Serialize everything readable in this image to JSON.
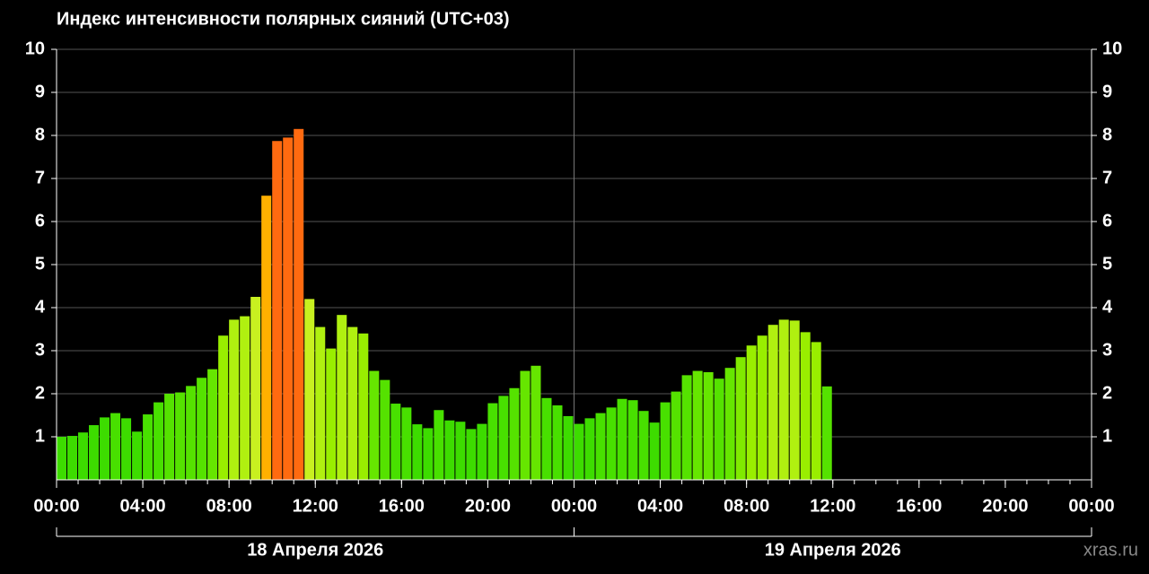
{
  "chart_data": {
    "type": "bar",
    "title": "Индекс интенсивности полярных сияний (UTC+03)",
    "x": [
      0,
      0.5,
      1,
      1.5,
      2,
      2.5,
      3,
      3.5,
      4,
      4.5,
      5,
      5.5,
      6,
      6.5,
      7,
      7.5,
      8,
      8.5,
      9,
      9.5,
      10,
      10.5,
      11,
      11.5,
      12,
      12.5,
      13,
      13.5,
      14,
      14.5,
      15,
      15.5,
      16,
      16.5,
      17,
      17.5,
      18,
      18.5,
      19,
      19.5,
      20,
      20.5,
      21,
      21.5,
      22,
      22.5,
      23,
      23.5,
      24,
      24.5,
      25,
      25.5,
      26,
      26.5,
      27,
      27.5,
      28,
      28.5,
      29,
      29.5,
      30,
      30.5,
      31,
      31.5,
      32,
      32.5,
      33,
      33.5,
      34,
      34.5,
      35,
      35.5
    ],
    "values": [
      1.0,
      1.02,
      1.1,
      1.27,
      1.45,
      1.55,
      1.43,
      1.12,
      1.52,
      1.8,
      2.0,
      2.03,
      2.18,
      2.37,
      2.57,
      3.35,
      3.72,
      3.8,
      4.25,
      6.6,
      7.87,
      7.95,
      8.15,
      4.2,
      3.55,
      3.05,
      3.83,
      3.55,
      3.4,
      2.53,
      2.32,
      1.77,
      1.68,
      1.29,
      1.2,
      1.62,
      1.38,
      1.35,
      1.18,
      1.3,
      1.78,
      1.95,
      2.13,
      2.53,
      2.65,
      1.9,
      1.73,
      1.48,
      1.3,
      1.43,
      1.55,
      1.68,
      1.88,
      1.85,
      1.6,
      1.33,
      1.8,
      2.05,
      2.43,
      2.53,
      2.5,
      2.35,
      2.6,
      2.85,
      3.12,
      3.35,
      3.6,
      3.72,
      3.7,
      3.43,
      3.2,
      2.17
    ],
    "colors": [
      "#3ddc00",
      "#3ddc00",
      "#3ddc00",
      "#3ddc00",
      "#3ddc00",
      "#48e000",
      "#3ddc00",
      "#3ddc00",
      "#48e000",
      "#48e000",
      "#55e200",
      "#55e200",
      "#55e200",
      "#55e200",
      "#66e600",
      "#99ee00",
      "#b0f010",
      "#b0f010",
      "#c8f020",
      "#ffb000",
      "#ff6a10",
      "#ff6a10",
      "#ff6a10",
      "#c8f020",
      "#b0f010",
      "#99ee00",
      "#b0f010",
      "#b0f010",
      "#99ee00",
      "#66e600",
      "#55e200",
      "#48e000",
      "#48e000",
      "#3ddc00",
      "#3ddc00",
      "#48e000",
      "#3ddc00",
      "#3ddc00",
      "#3ddc00",
      "#3ddc00",
      "#48e000",
      "#48e000",
      "#55e200",
      "#66e600",
      "#66e600",
      "#48e000",
      "#48e000",
      "#3ddc00",
      "#3ddc00",
      "#3ddc00",
      "#48e000",
      "#48e000",
      "#48e000",
      "#48e000",
      "#48e000",
      "#3ddc00",
      "#48e000",
      "#55e200",
      "#55e200",
      "#66e600",
      "#66e600",
      "#55e200",
      "#66e600",
      "#80ea00",
      "#99ee00",
      "#99ee00",
      "#b0f010",
      "#b0f010",
      "#b0f010",
      "#99ee00",
      "#99ee00",
      "#55e200"
    ],
    "xlim": [
      0,
      48
    ],
    "xticks": [
      {
        "value": 0,
        "label": "00:00"
      },
      {
        "value": 4,
        "label": "04:00"
      },
      {
        "value": 8,
        "label": "08:00"
      },
      {
        "value": 12,
        "label": "12:00"
      },
      {
        "value": 16,
        "label": "16:00"
      },
      {
        "value": 20,
        "label": "20:00"
      },
      {
        "value": 24,
        "label": "00:00"
      },
      {
        "value": 28,
        "label": "04:00"
      },
      {
        "value": 32,
        "label": "08:00"
      },
      {
        "value": 36,
        "label": "12:00"
      },
      {
        "value": 40,
        "label": "16:00"
      },
      {
        "value": 44,
        "label": "20:00"
      },
      {
        "value": 48,
        "label": "00:00"
      }
    ],
    "x_groups": [
      {
        "label": "18 Апреля 2026",
        "from": 0,
        "to": 24
      },
      {
        "label": "19 Апреля 2026",
        "from": 24,
        "to": 48
      }
    ],
    "ylim": [
      0,
      10
    ],
    "yticks": [
      1,
      2,
      3,
      4,
      5,
      6,
      7,
      8,
      9,
      10
    ],
    "grid": true,
    "watermark": "xras.ru"
  }
}
